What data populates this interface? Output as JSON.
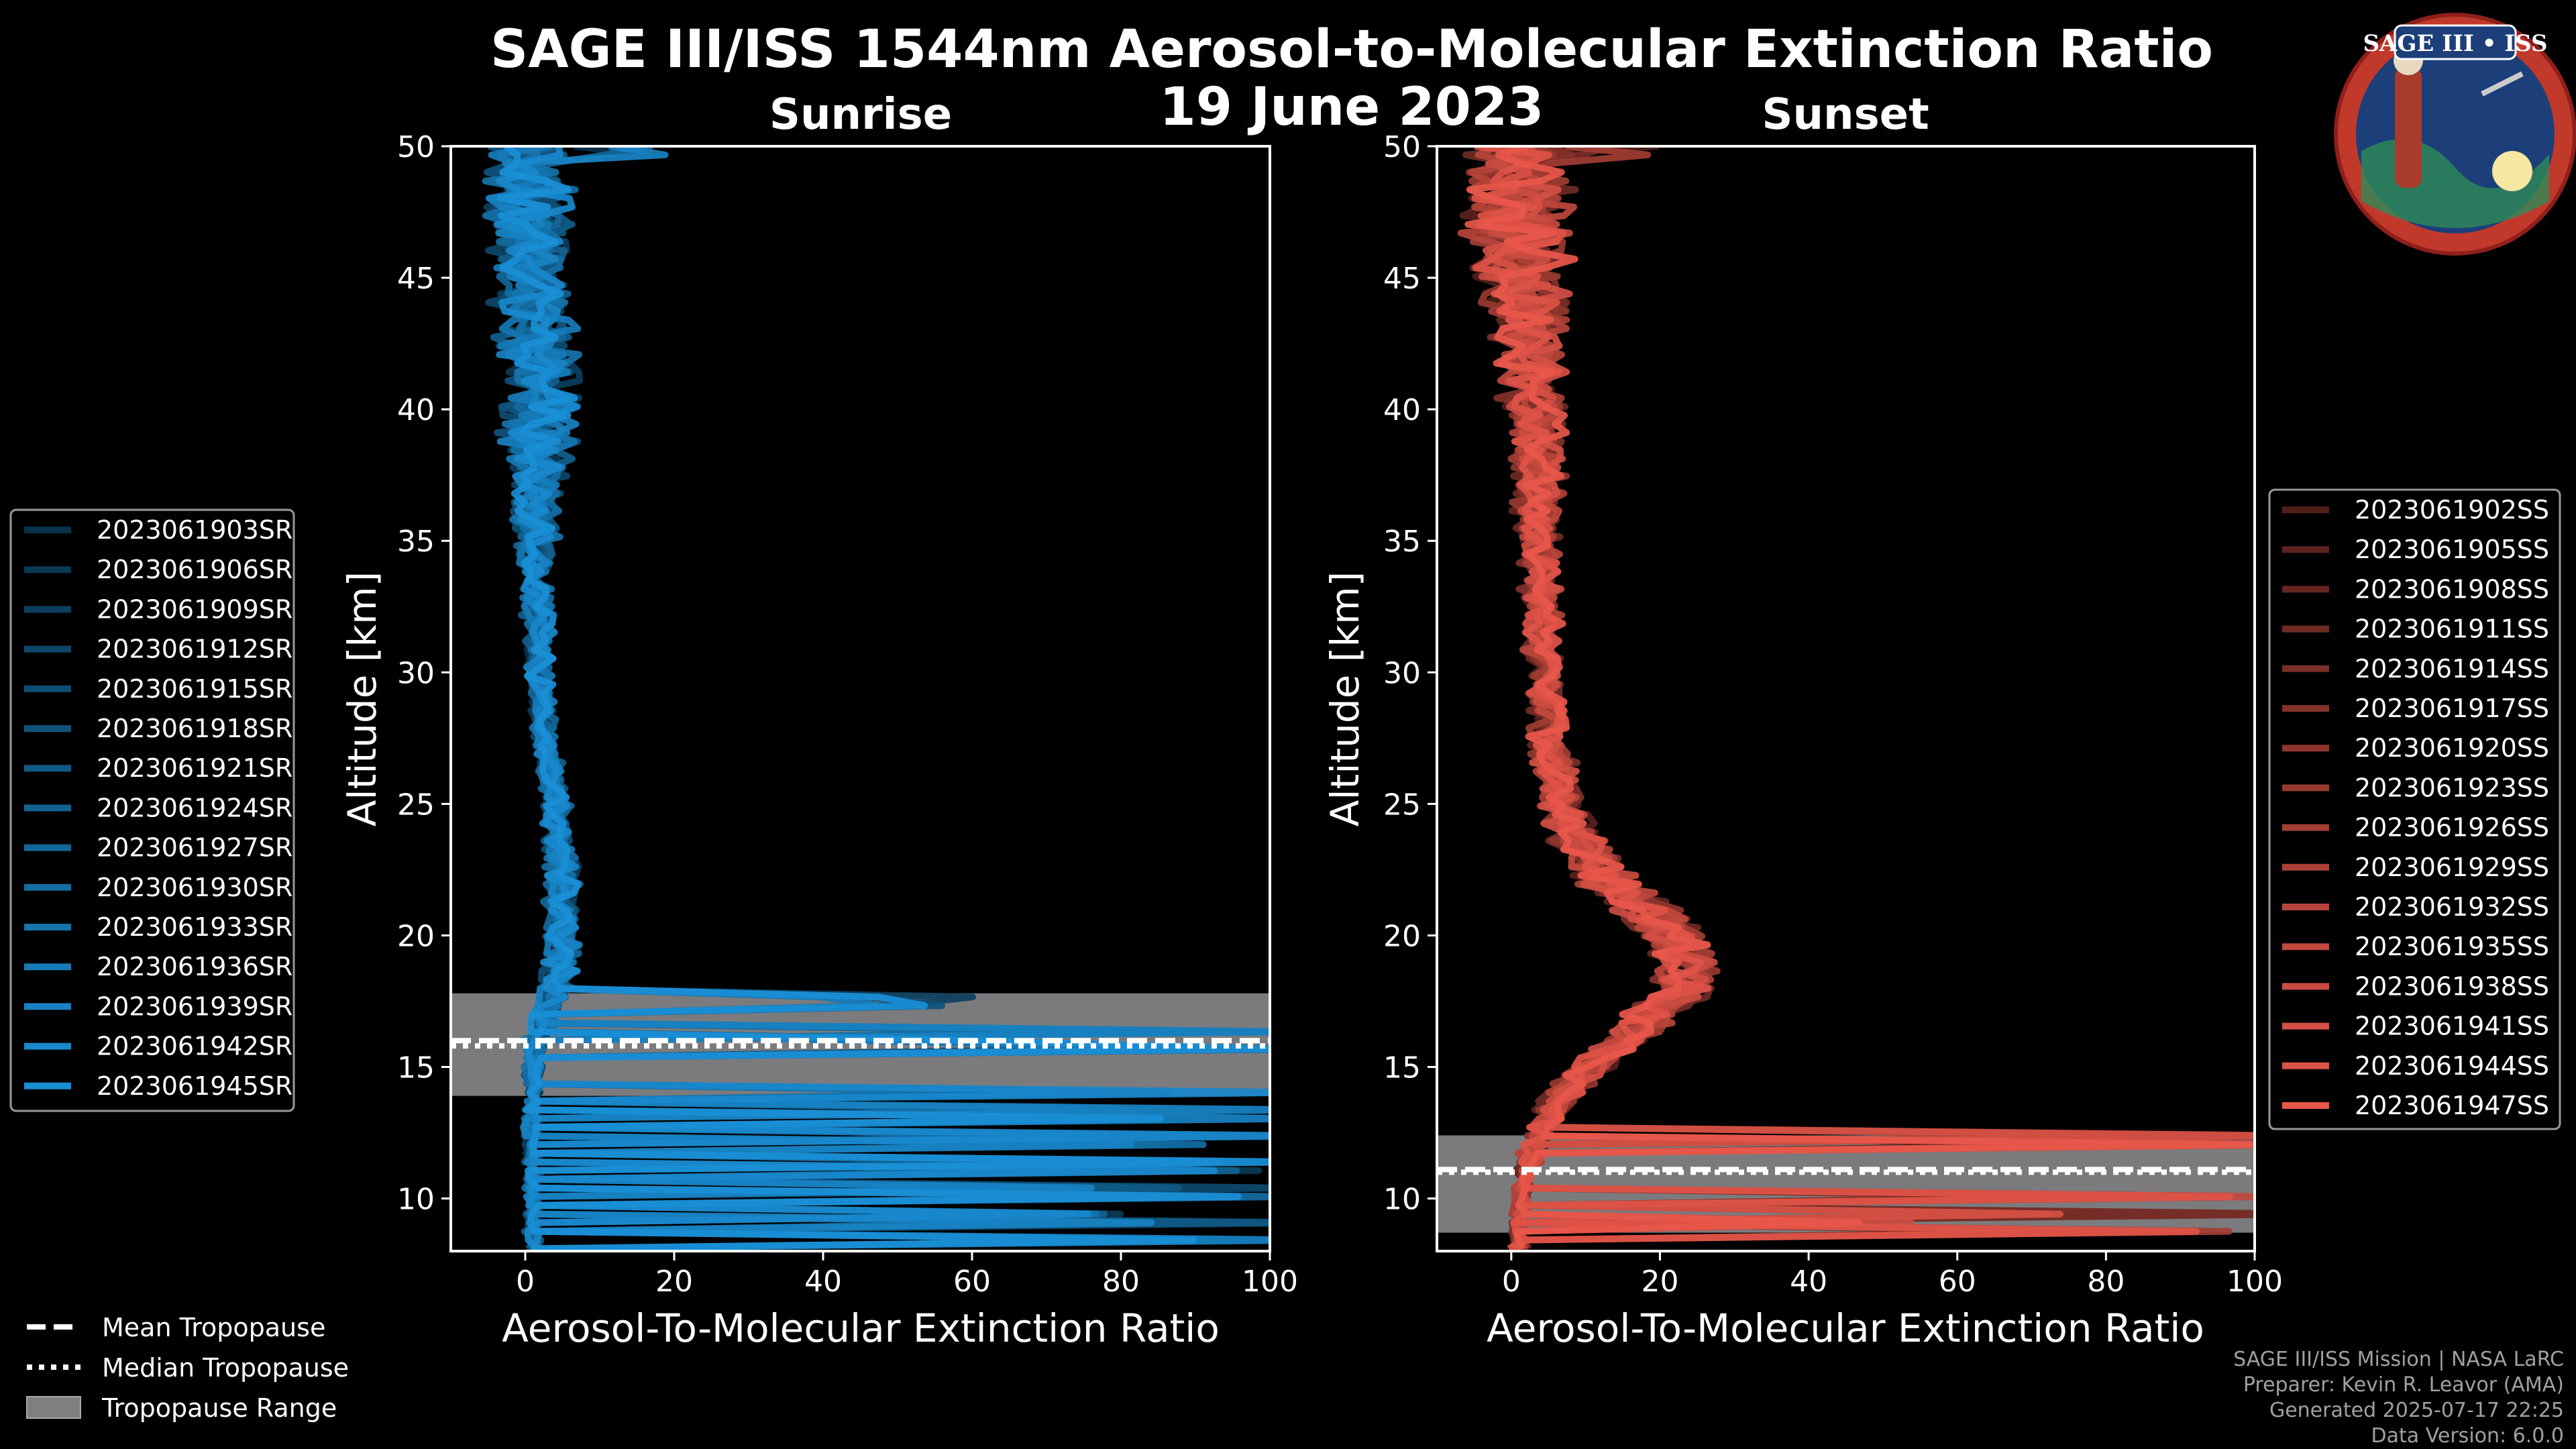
{
  "figure": {
    "title": "SAGE III/ISS 1544nm Aerosol-to-Molecular Extinction Ratio",
    "date": "19 June 2023",
    "logo_text": "SAGE III • ISS",
    "credits": [
      "SAGE III/ISS Mission | NASA LaRC",
      "Preparer: Kevin R. Leavor (AMA)",
      "Generated 2025-07-17 22:25",
      "Data Version: 6.0.0"
    ],
    "common_legend": [
      {
        "label": "Mean Tropopause",
        "style": "dashed"
      },
      {
        "label": "Median Tropopause",
        "style": "dotted"
      },
      {
        "label": "Tropopause Range",
        "style": "patch"
      }
    ]
  },
  "chart_data": [
    {
      "type": "line",
      "title": "Sunrise",
      "xlabel": "Aerosol-To-Molecular Extinction Ratio",
      "ylabel": "Altitude [km]",
      "xlim": [
        -10,
        100
      ],
      "ylim": [
        8,
        50
      ],
      "xticks": [
        0,
        20,
        40,
        60,
        80,
        100
      ],
      "yticks": [
        10,
        15,
        20,
        25,
        30,
        35,
        40,
        45,
        50
      ],
      "tropopause": {
        "min": 13.9,
        "max": 17.8,
        "mean": 16.0,
        "median": 15.8
      },
      "base_color": "#1a8fd6",
      "legend_position": "left",
      "series": [
        {
          "name": "2023061903SR"
        },
        {
          "name": "2023061906SR"
        },
        {
          "name": "2023061909SR"
        },
        {
          "name": "2023061912SR"
        },
        {
          "name": "2023061915SR"
        },
        {
          "name": "2023061918SR"
        },
        {
          "name": "2023061921SR"
        },
        {
          "name": "2023061924SR"
        },
        {
          "name": "2023061927SR"
        },
        {
          "name": "2023061930SR"
        },
        {
          "name": "2023061933SR"
        },
        {
          "name": "2023061936SR"
        },
        {
          "name": "2023061939SR"
        },
        {
          "name": "2023061942SR"
        },
        {
          "name": "2023061945SR"
        }
      ],
      "profile": [
        [
          50,
          0
        ],
        [
          48,
          0.5
        ],
        [
          46,
          1
        ],
        [
          44,
          1.5
        ],
        [
          42,
          2
        ],
        [
          40,
          2
        ],
        [
          38,
          1.5
        ],
        [
          36,
          1.5
        ],
        [
          34,
          1.5
        ],
        [
          32,
          1.8
        ],
        [
          30,
          2
        ],
        [
          28,
          2.5
        ],
        [
          26,
          3.5
        ],
        [
          24,
          4.5
        ],
        [
          22,
          5
        ],
        [
          20,
          5
        ],
        [
          19,
          5
        ],
        [
          18,
          4
        ],
        [
          17,
          2.5
        ],
        [
          16,
          1.5
        ],
        [
          14,
          1
        ],
        [
          12,
          1
        ],
        [
          10,
          1
        ],
        [
          8,
          1
        ]
      ],
      "noise": [
        [
          50,
          5
        ],
        [
          46,
          5
        ],
        [
          42,
          5
        ],
        [
          38,
          4
        ],
        [
          34,
          2
        ],
        [
          30,
          1.5
        ],
        [
          26,
          1.5
        ],
        [
          22,
          2
        ],
        [
          18,
          2
        ],
        [
          14,
          1
        ],
        [
          8,
          1
        ]
      ],
      "spikes": [
        [
          17.5,
          55
        ],
        [
          16.5,
          100
        ],
        [
          16,
          60
        ],
        [
          15.8,
          100
        ],
        [
          14,
          100
        ],
        [
          13.5,
          100
        ],
        [
          13,
          100
        ],
        [
          12.5,
          100
        ],
        [
          12,
          100
        ],
        [
          11.5,
          100
        ],
        [
          11,
          100
        ],
        [
          10.5,
          100
        ],
        [
          10,
          100
        ],
        [
          9.5,
          100
        ],
        [
          9,
          100
        ],
        [
          8.5,
          100
        ]
      ],
      "top_spike": 22
    },
    {
      "type": "line",
      "title": "Sunset",
      "xlabel": "Aerosol-To-Molecular Extinction Ratio",
      "ylabel": "Altitude [km]",
      "xlim": [
        -10,
        100
      ],
      "ylim": [
        8,
        50
      ],
      "xticks": [
        0,
        20,
        40,
        60,
        80,
        100
      ],
      "yticks": [
        10,
        15,
        20,
        25,
        30,
        35,
        40,
        45,
        50
      ],
      "tropopause": {
        "min": 8.7,
        "max": 12.4,
        "mean": 11.1,
        "median": 11.0
      },
      "base_color": "#e8574a",
      "legend_position": "right",
      "series": [
        {
          "name": "2023061902SS"
        },
        {
          "name": "2023061905SS"
        },
        {
          "name": "2023061908SS"
        },
        {
          "name": "2023061911SS"
        },
        {
          "name": "2023061914SS"
        },
        {
          "name": "2023061917SS"
        },
        {
          "name": "2023061920SS"
        },
        {
          "name": "2023061923SS"
        },
        {
          "name": "2023061926SS"
        },
        {
          "name": "2023061929SS"
        },
        {
          "name": "2023061932SS"
        },
        {
          "name": "2023061935SS"
        },
        {
          "name": "2023061938SS"
        },
        {
          "name": "2023061941SS"
        },
        {
          "name": "2023061944SS"
        },
        {
          "name": "2023061947SS"
        }
      ],
      "profile": [
        [
          50,
          0
        ],
        [
          48,
          0.5
        ],
        [
          46,
          1
        ],
        [
          44,
          2
        ],
        [
          42,
          2.5
        ],
        [
          40,
          3
        ],
        [
          38,
          3.5
        ],
        [
          36,
          3.5
        ],
        [
          34,
          3.5
        ],
        [
          32,
          4
        ],
        [
          30,
          4.5
        ],
        [
          28,
          5
        ],
        [
          26,
          6
        ],
        [
          24,
          8
        ],
        [
          22,
          13
        ],
        [
          21,
          18
        ],
        [
          20,
          22
        ],
        [
          19,
          24
        ],
        [
          18,
          23
        ],
        [
          17,
          19
        ],
        [
          16,
          15
        ],
        [
          15,
          11
        ],
        [
          14,
          7
        ],
        [
          13,
          5
        ],
        [
          12,
          3
        ],
        [
          11,
          2
        ],
        [
          10,
          1.5
        ],
        [
          9,
          1
        ],
        [
          8,
          1
        ]
      ],
      "noise": [
        [
          50,
          6
        ],
        [
          46,
          6
        ],
        [
          42,
          4
        ],
        [
          38,
          3
        ],
        [
          34,
          2.5
        ],
        [
          30,
          2
        ],
        [
          26,
          2.5
        ],
        [
          22,
          4
        ],
        [
          19,
          4
        ],
        [
          16,
          3
        ],
        [
          13,
          2
        ],
        [
          10,
          1
        ],
        [
          8,
          1
        ]
      ],
      "spikes": [
        [
          12.5,
          100
        ],
        [
          12.2,
          100
        ],
        [
          10,
          100
        ],
        [
          9.5,
          100
        ],
        [
          9,
          60
        ],
        [
          8.6,
          100
        ]
      ],
      "top_spike": 24
    }
  ]
}
